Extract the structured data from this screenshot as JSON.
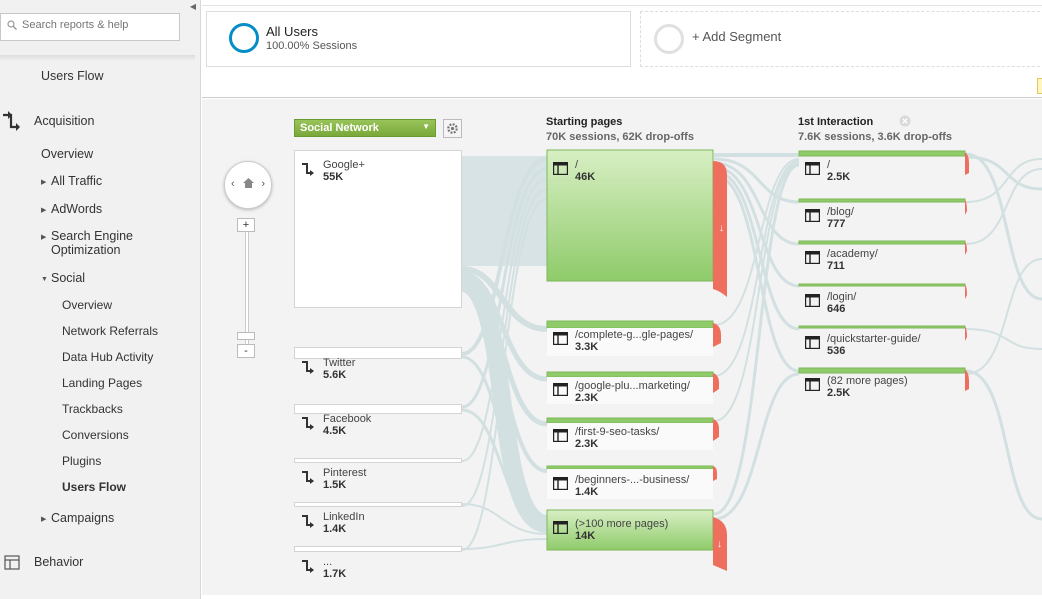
{
  "sidebar": {
    "search_placeholder": "Search reports & help",
    "users_flow_top": "Users Flow",
    "acquisition": "Acquisition",
    "overview": "Overview",
    "all_traffic": "All Traffic",
    "adwords": "AdWords",
    "seo_line1": "Search Engine",
    "seo_line2": "Optimization",
    "social": "Social",
    "social_items": [
      "Overview",
      "Network Referrals",
      "Data Hub Activity",
      "Landing Pages",
      "Trackbacks",
      "Conversions",
      "Plugins",
      "Users Flow"
    ],
    "campaigns": "Campaigns",
    "behavior": "Behavior"
  },
  "segments": {
    "all_users_title": "All Users",
    "all_users_sub": "100.00% Sessions",
    "add_segment": "+ Add Segment"
  },
  "flow": {
    "dimension": "Social Network",
    "sources": [
      {
        "name": "Google+",
        "value": "55K"
      },
      {
        "name": "Twitter",
        "value": "5.6K"
      },
      {
        "name": "Facebook",
        "value": "4.5K"
      },
      {
        "name": "Pinterest",
        "value": "1.5K"
      },
      {
        "name": "LinkedIn",
        "value": "1.4K"
      },
      {
        "name": "...",
        "value": "1.7K"
      }
    ],
    "starting_pages_title": "Starting pages",
    "starting_pages_sub": "70K sessions, 62K drop-offs",
    "starting_pages": [
      {
        "name": "/",
        "value": "46K"
      },
      {
        "name": "/complete-g...gle-pages/",
        "value": "3.3K"
      },
      {
        "name": "/google-plu...marketing/",
        "value": "2.3K"
      },
      {
        "name": "/first-9-seo-tasks/",
        "value": "2.3K"
      },
      {
        "name": "/beginners-...-business/",
        "value": "1.4K"
      },
      {
        "name": "(>100 more pages)",
        "value": "14K"
      }
    ],
    "first_interaction_title": "1st Interaction",
    "first_interaction_sub": "7.6K sessions, 3.6K drop-offs",
    "first_interaction": [
      {
        "name": "/",
        "value": "2.5K"
      },
      {
        "name": "/blog/",
        "value": "777"
      },
      {
        "name": "/academy/",
        "value": "711"
      },
      {
        "name": "/login/",
        "value": "646"
      },
      {
        "name": "/quickstarter-guide/",
        "value": "536"
      },
      {
        "name": "(82 more pages)",
        "value": "2.5K"
      }
    ],
    "zoom_in": "+",
    "zoom_out": "-"
  },
  "colors": {
    "segment_ring": "#058dc7",
    "node_green": "#8fcb6a",
    "dropoff_red": "#ef6f5e",
    "dimension_green": "#8cba4a"
  }
}
